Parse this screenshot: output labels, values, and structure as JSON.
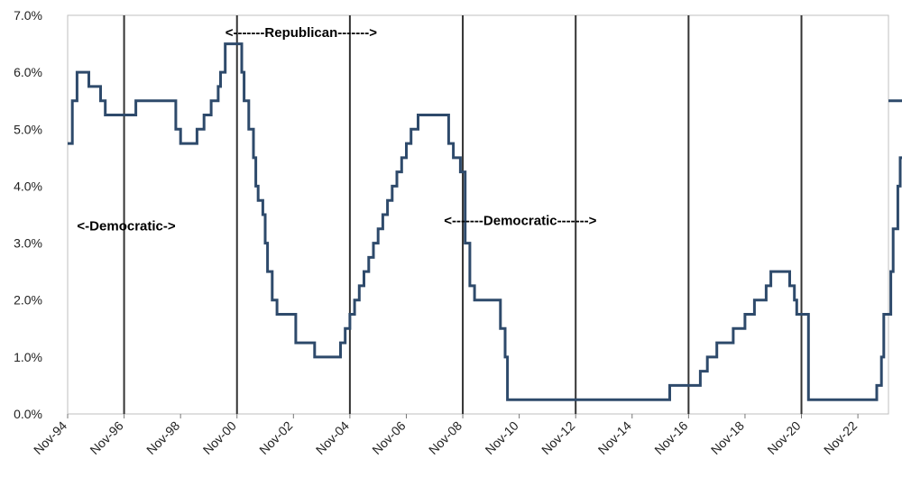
{
  "chart_data": {
    "type": "line",
    "title": "",
    "xlabel": "",
    "ylabel": "",
    "ylim": [
      0,
      7
    ],
    "xlim": [
      "Nov-94",
      "Dec-23"
    ],
    "grid": false,
    "y_ticks": [
      "0.0%",
      "1.0%",
      "2.0%",
      "3.0%",
      "4.0%",
      "5.0%",
      "6.0%",
      "7.0%"
    ],
    "x_ticks": [
      "Nov-94",
      "Nov-96",
      "Nov-98",
      "Nov-00",
      "Nov-02",
      "Nov-04",
      "Nov-06",
      "Nov-08",
      "Nov-10",
      "Nov-12",
      "Nov-14",
      "Nov-16",
      "Nov-18",
      "Nov-20",
      "Nov-22"
    ],
    "election_lines": [
      "Nov-96",
      "Nov-00",
      "Nov-04",
      "Nov-08",
      "Nov-12",
      "Nov-16",
      "Nov-20"
    ],
    "annotations": [
      {
        "text": "<-Democratic->",
        "x": "Mar-95",
        "y": 3.3
      },
      {
        "text": "<-------Republican------->",
        "x": "Jun-00",
        "y": 6.7
      },
      {
        "text": "<-------Democratic------->",
        "x": "Mar-08",
        "y": 3.4
      }
    ],
    "colors": {
      "line": "#2e4a6b",
      "vertical": "#333333",
      "axis": "#bfbfbf"
    },
    "series": [
      {
        "values": [
          [
            "1994-11",
            4.75
          ],
          [
            "1995-01",
            5.5
          ],
          [
            "1995-03",
            6.0
          ],
          [
            "1995-08",
            5.75
          ],
          [
            "1996-01",
            5.5
          ],
          [
            "1996-03",
            5.25
          ],
          [
            "1997-04",
            5.5
          ],
          [
            "1998-09",
            5.0
          ],
          [
            "1998-11",
            4.75
          ],
          [
            "1999-06",
            5.0
          ],
          [
            "1999-09",
            5.25
          ],
          [
            "1999-12",
            5.5
          ],
          [
            "2000-03",
            5.75
          ],
          [
            "2000-04",
            6.0
          ],
          [
            "2000-06",
            6.5
          ],
          [
            "2001-01",
            6.0
          ],
          [
            "2001-02",
            5.5
          ],
          [
            "2001-04",
            5.0
          ],
          [
            "2001-06",
            4.5
          ],
          [
            "2001-07",
            4.0
          ],
          [
            "2001-08",
            3.75
          ],
          [
            "2001-10",
            3.5
          ],
          [
            "2001-11",
            3.0
          ],
          [
            "2001-12",
            2.5
          ],
          [
            "2002-02",
            2.0
          ],
          [
            "2002-04",
            1.75
          ],
          [
            "2002-12",
            1.25
          ],
          [
            "2003-08",
            1.0
          ],
          [
            "2004-07",
            1.25
          ],
          [
            "2004-09",
            1.5
          ],
          [
            "2004-11",
            1.75
          ],
          [
            "2005-01",
            2.0
          ],
          [
            "2005-03",
            2.25
          ],
          [
            "2005-05",
            2.5
          ],
          [
            "2005-07",
            2.75
          ],
          [
            "2005-09",
            3.0
          ],
          [
            "2005-11",
            3.25
          ],
          [
            "2006-01",
            3.5
          ],
          [
            "2006-03",
            3.75
          ],
          [
            "2006-05",
            4.0
          ],
          [
            "2006-07",
            4.25
          ],
          [
            "2006-09",
            4.5
          ],
          [
            "2006-11",
            4.75
          ],
          [
            "2007-01",
            5.0
          ],
          [
            "2007-04",
            5.25
          ],
          [
            "2008-05",
            4.75
          ],
          [
            "2008-07",
            4.5
          ],
          [
            "2008-10",
            4.25
          ],
          [
            "2008-12",
            3.0
          ],
          [
            "2009-02",
            2.25
          ],
          [
            "2009-04",
            2.0
          ],
          [
            "2010-03",
            1.5
          ],
          [
            "2010-05",
            1.0
          ],
          [
            "2010-06",
            0.25
          ],
          [
            "2016-03",
            0.5
          ],
          [
            "2017-04",
            0.75
          ],
          [
            "2017-07",
            1.0
          ],
          [
            "2017-11",
            1.25
          ],
          [
            "2018-06",
            1.5
          ],
          [
            "2018-11",
            1.75
          ],
          [
            "2019-03",
            2.0
          ],
          [
            "2019-08",
            2.25
          ],
          [
            "2019-10",
            2.5
          ],
          [
            "2020-06",
            2.25
          ],
          [
            "2020-08",
            2.0
          ],
          [
            "2020-09",
            1.75
          ],
          [
            "2021-02",
            0.25
          ],
          [
            "2023-07",
            0.5
          ],
          [
            "2023-09",
            1.0
          ],
          [
            "2023-10",
            1.75
          ],
          [
            "2024-01",
            2.5
          ],
          [
            "2024-02",
            3.25
          ],
          [
            "2024-04",
            4.0
          ],
          [
            "2024-05",
            4.5
          ],
          [
            "2024-07",
            4.75
          ],
          [
            "2024-09",
            5.0
          ],
          [
            "2024-11",
            5.25
          ],
          [
            "2025-03",
            5.5
          ],
          [
            "2026-03",
            5.5
          ]
        ]
      }
    ]
  }
}
